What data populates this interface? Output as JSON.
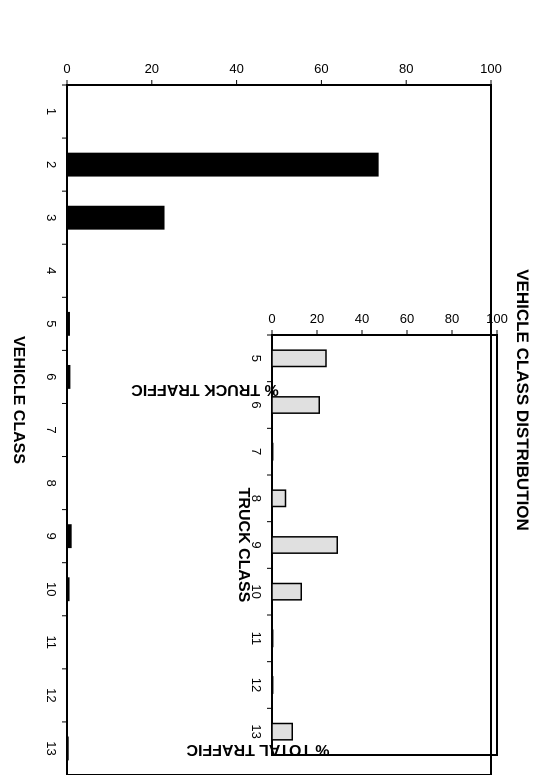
{
  "chart_data": [
    {
      "id": "main",
      "type": "bar",
      "title": "VEHICLE CLASS DISTRIBUTION",
      "xlabel": "VEHICLE CLASS",
      "ylabel": "% TOTAL TRAFFIC",
      "ylim": [
        0,
        100
      ],
      "y_ticks": [
        "0",
        "20",
        "40",
        "60",
        "80",
        "100"
      ],
      "grid": false,
      "categories": [
        "1",
        "2",
        "3",
        "4",
        "5",
        "6",
        "7",
        "8",
        "9",
        "10",
        "11",
        "12",
        "13"
      ],
      "values": [
        0.2,
        73.5,
        23,
        0.1,
        0.7,
        0.8,
        0,
        0.1,
        1.1,
        0.6,
        0,
        0,
        0.4
      ],
      "bar_color": "#000000"
    },
    {
      "id": "inset",
      "type": "bar",
      "xlabel": "TRUCK CLASS",
      "ylabel": "% TRUCK TRAFFIC",
      "ylim": [
        0,
        100
      ],
      "y_ticks": [
        "0",
        "20",
        "40",
        "60",
        "80",
        "100"
      ],
      "grid": false,
      "categories": [
        "5",
        "6",
        "7",
        "8",
        "9",
        "10",
        "11",
        "12",
        "13"
      ],
      "values": [
        24,
        21,
        0.3,
        6,
        29,
        13,
        0.3,
        0.3,
        9
      ],
      "bar_color": "#e0e0e0"
    }
  ]
}
